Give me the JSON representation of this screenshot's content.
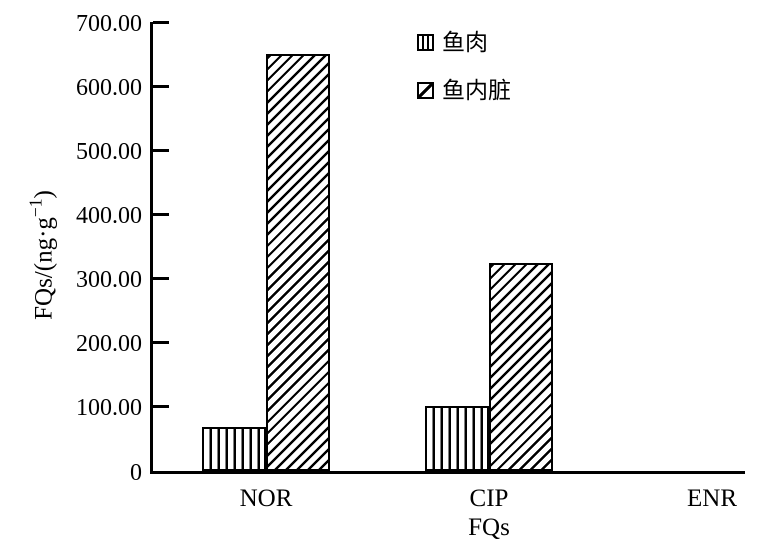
{
  "figure": {
    "background": "#ffffff",
    "ink": "#000000"
  },
  "chart_data": {
    "type": "bar",
    "title": "",
    "categories": [
      "NOR",
      "CIP",
      "ENR"
    ],
    "series": [
      {
        "key": "fish-meat",
        "name": "鱼肉",
        "hatch": "vertical",
        "values": [
          68,
          102,
          0
        ]
      },
      {
        "key": "fish-viscera",
        "name": "鱼内脏",
        "hatch": "diagonal",
        "values": [
          650,
          325,
          0
        ]
      }
    ],
    "xlabel": "FQs",
    "ylabel": "FQs/(ng·g−1)",
    "ylabel_parts": {
      "base": "FQs/(ng·g",
      "sup": "−1",
      "close": ")"
    },
    "ylim": [
      0,
      700
    ],
    "ytick_step": 100,
    "ytick_labels": [
      "0",
      "100.00",
      "200.00",
      "300.00",
      "400.00",
      "500.00",
      "600.00",
      "700.00"
    ],
    "grid": false,
    "legend_position": "top-center-inside",
    "bar_fill": "#ffffff",
    "edge_color": "#000000"
  },
  "legend": {
    "items": [
      {
        "label": "鱼肉",
        "swatch": "vertical-hatch"
      },
      {
        "label": "鱼内脏",
        "swatch": "diagonal-hatch"
      }
    ]
  }
}
